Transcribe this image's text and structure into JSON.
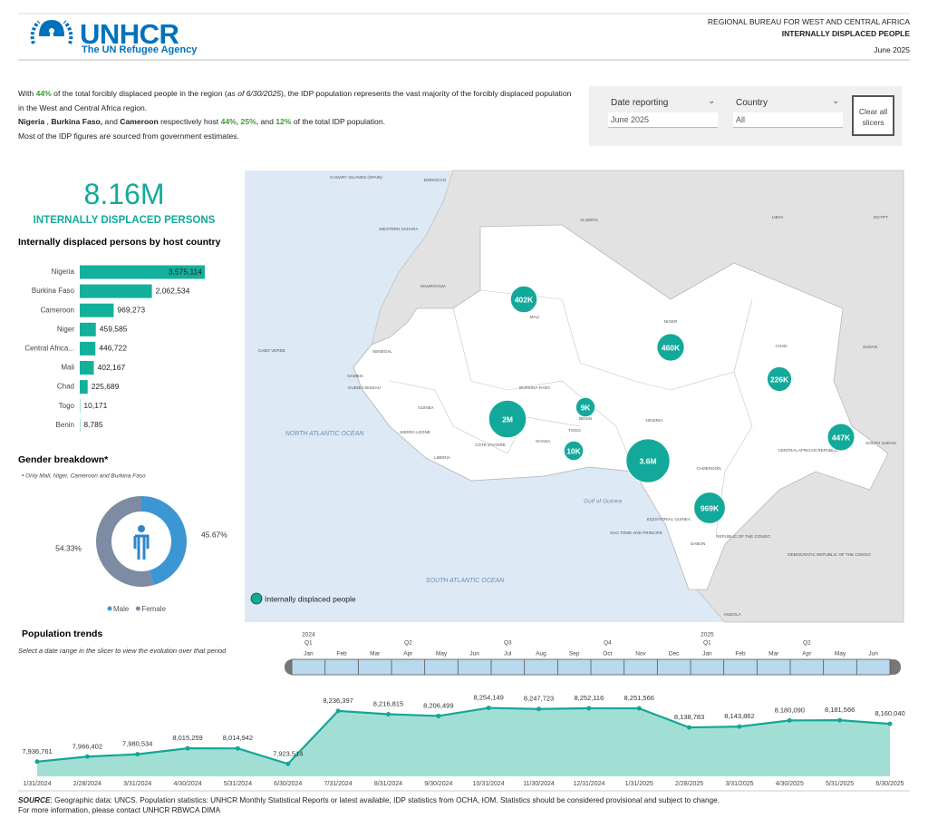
{
  "header": {
    "logo_name": "UNHCR",
    "logo_sub": "The UN Refugee Agency",
    "bureau": "REGIONAL BUREAU FOR WEST AND CENTRAL AFRICA",
    "title": "INTERNALLY DISPLACED PEOPLE",
    "date": "June 2025"
  },
  "intro": {
    "p1": [
      "With ",
      "44%",
      " of the total forcibly displaced people in the region (",
      "as of 6/30/2025",
      "), the IDP population represents the vast majority of the forcibly displaced population in the West and Central Africa region."
    ],
    "p2": [
      "Nigeria",
      " , ",
      "Burkina Faso,",
      " and ",
      "Cameroon",
      " respectively host ",
      "44%, 25%,",
      " and ",
      "12%",
      " of the total IDP population."
    ],
    "p3": "Most of the IDP figures are sourced from government estimates."
  },
  "slicers": {
    "date_label": "Date reporting",
    "date_value": "June 2025",
    "country_label": "Country",
    "country_value": "All",
    "clear": "Clear all slicers"
  },
  "kpi": {
    "value": "8.16M",
    "label": "INTERNALLY DISPLACED PERSONS"
  },
  "chart_data": [
    {
      "type": "hbar",
      "title": "Internally displaced persons by host country",
      "categories": [
        "Nigeria",
        "Burkina Faso",
        "Cameroon",
        "Niger",
        "Central Africa...",
        "Mali",
        "Chad",
        "Togo",
        "Benin"
      ],
      "values": [
        3575114,
        2062534,
        969273,
        459585,
        446722,
        402167,
        225689,
        10171,
        8785
      ],
      "value_labels": [
        "3,575,114",
        "2,062,534",
        "969,273",
        "459,585",
        "446,722",
        "402,167",
        "225,689",
        "10,171",
        "8,785"
      ],
      "color": "#13b09b"
    },
    {
      "type": "pie",
      "title": "Gender breakdown*",
      "note": "• Only Mali, Niger, Cameroon and Burkina Faso",
      "categories": [
        "Male",
        "Female"
      ],
      "values": [
        45.67,
        54.33
      ],
      "value_labels": [
        "45.67%",
        "54.33%"
      ],
      "colors": [
        "#3d96d4",
        "#7d8ca2"
      ]
    },
    {
      "type": "area",
      "title": "Population trends",
      "subtitle": "Select a date range in the slicer to view the evolution over that period",
      "categories": [
        "1/31/2024",
        "2/28/2024",
        "3/31/2024",
        "4/30/2024",
        "5/31/2024",
        "6/30/2024",
        "7/31/2024",
        "8/31/2024",
        "9/30/2024",
        "10/31/2024",
        "11/30/2024",
        "12/31/2024",
        "1/31/2025",
        "2/28/2025",
        "3/31/2025",
        "4/30/2025",
        "5/31/2025",
        "6/30/2025"
      ],
      "values": [
        7936761,
        7966402,
        7980534,
        8015259,
        8014942,
        7923514,
        8236397,
        8216815,
        8206499,
        8254149,
        8247723,
        8252116,
        8251566,
        8138783,
        8143862,
        8180090,
        8181566,
        8160040
      ],
      "value_labels": [
        "7,936,761",
        "7,966,402",
        "7,980,534",
        "8,015,259",
        "8,014,942",
        "7,923,514",
        "8,236,397",
        "8,216,815",
        "8,206,499",
        "8,254,149",
        "8,247,723",
        "8,252,116",
        "8,251,566",
        "8,138,783",
        "8,143,862",
        "8,180,090",
        "8,181,566",
        "8,160,040"
      ],
      "ylim": [
        7850000,
        8300000
      ],
      "color": "#15a696",
      "fill": "#97dbd0"
    }
  ],
  "timeline": {
    "years": [
      "2024",
      "2025"
    ],
    "quarters": [
      "Q1",
      "Q2",
      "Q3",
      "Q4",
      "Q1",
      "Q2"
    ],
    "months": [
      "Jan",
      "Feb",
      "Mar",
      "Apr",
      "May",
      "Jun",
      "Jul",
      "Aug",
      "Sep",
      "Oct",
      "Nov",
      "Dec",
      "Jan",
      "Feb",
      "Mar",
      "Apr",
      "May",
      "Jun"
    ]
  },
  "map": {
    "legend": "Internally displaced people",
    "color": "#13a99a",
    "bubbles": [
      {
        "value": 402167,
        "label": "402K"
      },
      {
        "value": 459585,
        "label": "460K"
      },
      {
        "value": 225689,
        "label": "226K"
      },
      {
        "value": 2062534,
        "label": "2M"
      },
      {
        "value": 8785,
        "label": "9K"
      },
      {
        "value": 10171,
        "label": "10K"
      },
      {
        "value": 3575114,
        "label": "3.6M"
      },
      {
        "value": 969273,
        "label": "969K"
      },
      {
        "value": 446722,
        "label": "447K"
      }
    ],
    "countries": [
      "CANARY ISLANDS (SPAIN)",
      "MOROCCO",
      "ALGERIA",
      "LIBYA",
      "EGYPT",
      "WESTERN SAHARA",
      "MAURITANIA",
      "MALI",
      "NIGER",
      "CHAD",
      "SUDAN",
      "SENEGAL",
      "CABO VERDE",
      "GAMBIA",
      "GUINEA-BISSAU",
      "GUINEA",
      "SIERRA LEONE",
      "LIBERIA",
      "CÔTE D'IVOIRE",
      "GHANA",
      "BURKINA FASO",
      "BENIN",
      "TOGO",
      "NIGERIA",
      "CAMEROON",
      "CENTRAL AFRICAN REPUBLIC",
      "SOUTH SUDAN",
      "EQUATORIAL GUINEA",
      "SAO TOME AND PRINCIPE",
      "GABON",
      "REPUBLIC OF THE CONGO",
      "DEMOCRATIC REPUBLIC OF THE CONGO",
      "ANGOLA"
    ],
    "waters": [
      "NORTH ATLANTIC OCEAN",
      "Gulf of Guinea",
      "SOUTH ATLANTIC OCEAN"
    ]
  },
  "footer": {
    "source_label": "SOURCE",
    "source_text": ": Geographic data: UNCS. Population statistics: UNHCR Monthly Statistical Reports or latest available, IDP statistics from OCHA, IOM. Statistics should be considered provisional and subject to change.",
    "contact": "For more information, please contact UNHCR RBWCA DIMA"
  }
}
